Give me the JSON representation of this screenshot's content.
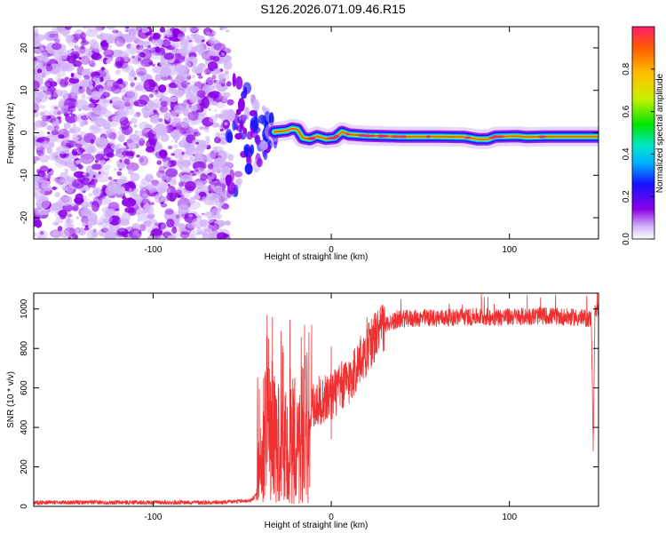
{
  "title": "S126.2026.071.09.46.R15",
  "chart_data": [
    {
      "type": "heatmap",
      "xlabel": "Height of straight line (km)",
      "ylabel": "Frequency (Hz)",
      "xlim": [
        -167,
        150
      ],
      "ylim": [
        -25,
        25
      ],
      "xticks": [
        -100,
        0,
        100
      ],
      "yticks": [
        -20,
        -10,
        0,
        10,
        20
      ],
      "tick_labels_x": [
        "-100",
        "0",
        "100"
      ],
      "tick_labels_y": [
        "-20",
        "-10",
        "0",
        "10",
        "20"
      ],
      "colorbar": {
        "label": "Normalized spectral amplitude",
        "range": [
          0,
          1
        ],
        "ticks": [
          "0.0",
          "0.2",
          "0.4",
          "0.6",
          "0.8"
        ],
        "tick_values": [
          0.0,
          0.2,
          0.4,
          0.6,
          0.8
        ],
        "colormap": [
          "#ffffff",
          "#d2b4f8",
          "#8a00e6",
          "#1414ff",
          "#00b4ff",
          "#00e6c8",
          "#00e600",
          "#c8f000",
          "#ffbe00",
          "#ff5a00",
          "#ff1e6e"
        ]
      },
      "noise_region_x": [
        -167,
        -58
      ],
      "transition_region_x": [
        -58,
        -30
      ],
      "carrier_frequency_hz": [
        {
          "x": -32,
          "y": 0.2
        },
        {
          "x": -25,
          "y": 0.5
        },
        {
          "x": -22,
          "y": 1.0
        },
        {
          "x": -19,
          "y": 0.8
        },
        {
          "x": -16,
          "y": -1.2
        },
        {
          "x": -12,
          "y": -1.5
        },
        {
          "x": -8,
          "y": -0.8
        },
        {
          "x": -3,
          "y": -1.4
        },
        {
          "x": 2,
          "y": -1.2
        },
        {
          "x": 6,
          "y": 0.2
        },
        {
          "x": 10,
          "y": -0.4
        },
        {
          "x": 20,
          "y": -0.7
        },
        {
          "x": 40,
          "y": -0.9
        },
        {
          "x": 60,
          "y": -0.9
        },
        {
          "x": 75,
          "y": -1.0
        },
        {
          "x": 82,
          "y": -1.5
        },
        {
          "x": 88,
          "y": -1.5
        },
        {
          "x": 92,
          "y": -0.9
        },
        {
          "x": 105,
          "y": -0.8
        },
        {
          "x": 110,
          "y": -1.0
        },
        {
          "x": 120,
          "y": -0.9
        },
        {
          "x": 150,
          "y": -0.9
        }
      ]
    },
    {
      "type": "line",
      "xlabel": "Height of straight line (km)",
      "ylabel": "SNR (10 * v/v)",
      "xlim": [
        -167,
        150
      ],
      "ylim": [
        0,
        1080
      ],
      "xticks": [
        -100,
        0,
        100
      ],
      "yticks": [
        0,
        200,
        400,
        600,
        800,
        1000
      ],
      "tick_labels_x": [
        "-100",
        "0",
        "100"
      ],
      "tick_labels_y": [
        "0",
        "200",
        "400",
        "600",
        "800",
        "1000"
      ],
      "color": "#f03030",
      "envelope": [
        {
          "x": -167,
          "y": 20
        },
        {
          "x": -60,
          "y": 20
        },
        {
          "x": -45,
          "y": 30
        },
        {
          "x": -40,
          "y": 80
        },
        {
          "x": -38,
          "y": 400
        },
        {
          "x": -36,
          "y": 500
        },
        {
          "x": -30,
          "y": 320
        },
        {
          "x": -20,
          "y": 330
        },
        {
          "x": -15,
          "y": 420
        },
        {
          "x": -10,
          "y": 520
        },
        {
          "x": 0,
          "y": 560
        },
        {
          "x": 10,
          "y": 640
        },
        {
          "x": 18,
          "y": 760
        },
        {
          "x": 25,
          "y": 870
        },
        {
          "x": 32,
          "y": 930
        },
        {
          "x": 40,
          "y": 950
        },
        {
          "x": 60,
          "y": 955
        },
        {
          "x": 80,
          "y": 960
        },
        {
          "x": 100,
          "y": 960
        },
        {
          "x": 120,
          "y": 965
        },
        {
          "x": 140,
          "y": 955
        },
        {
          "x": 146,
          "y": 950
        },
        {
          "x": 147,
          "y": 300
        },
        {
          "x": 148,
          "y": 980
        },
        {
          "x": 150,
          "y": 990
        }
      ],
      "peaks": [
        {
          "x": -36,
          "y": 970
        },
        {
          "x": -33,
          "y": 960
        },
        {
          "x": -27,
          "y": 780
        },
        {
          "x": -23,
          "y": 700
        },
        {
          "x": -15,
          "y": 920
        },
        {
          "x": -11,
          "y": 920
        },
        {
          "x": 0,
          "y": 810
        },
        {
          "x": 20,
          "y": 960
        },
        {
          "x": 110,
          "y": 1070
        },
        {
          "x": 88,
          "y": 1060
        }
      ],
      "dips": [
        {
          "x": -38,
          "y": 40
        },
        {
          "x": -34,
          "y": 30
        },
        {
          "x": -31,
          "y": 20
        },
        {
          "x": -26,
          "y": 50
        },
        {
          "x": -22,
          "y": 20
        },
        {
          "x": -18,
          "y": 15
        },
        {
          "x": -14,
          "y": 60
        },
        {
          "x": 0,
          "y": 340
        },
        {
          "x": 147,
          "y": 280
        }
      ]
    }
  ]
}
